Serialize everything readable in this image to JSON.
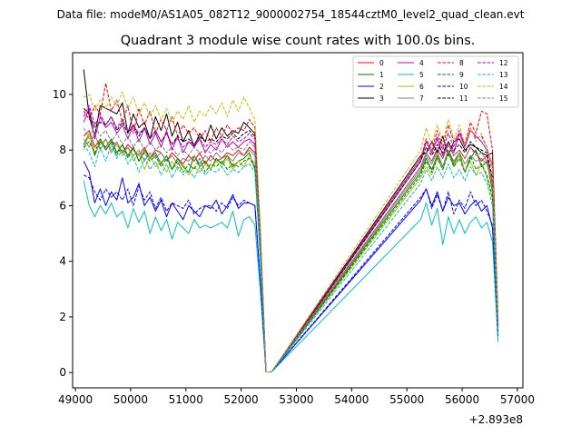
{
  "suptitle": "Data file: modeM0/AS1A05_082T12_9000002754_18544cztM0_level2_quad_clean.evt",
  "chart_data": {
    "type": "line",
    "title": "Quadrant 3 module wise count rates with 100.0s bins.",
    "xlabel": "",
    "ylabel": "",
    "x_offset_label": "+2.893e8",
    "xlim": [
      48950,
      57100
    ],
    "ylim": [
      -0.55,
      11.5
    ],
    "xticks": [
      49000,
      50000,
      51000,
      52000,
      53000,
      54000,
      55000,
      56000,
      57000
    ],
    "xtick_labels": [
      "49000",
      "50000",
      "51000",
      "52000",
      "53000",
      "54000",
      "55000",
      "56000",
      "57000"
    ],
    "yticks": [
      0,
      2,
      4,
      6,
      8,
      10
    ],
    "ytick_labels": [
      "0",
      "2",
      "4",
      "6",
      "8",
      "10"
    ],
    "grid": false,
    "legend_position": "top-right",
    "legend_columns": 4,
    "x": [
      49150,
      49250,
      49350,
      49450,
      49550,
      49650,
      49750,
      49850,
      49950,
      50050,
      50150,
      50250,
      50350,
      50450,
      50550,
      50650,
      50750,
      50850,
      50950,
      51050,
      51150,
      51250,
      51350,
      51450,
      51550,
      51650,
      51750,
      51850,
      51950,
      52050,
      52150,
      52250,
      52350,
      52450,
      52550,
      55250,
      55350,
      55450,
      55550,
      55650,
      55750,
      55850,
      55950,
      56050,
      56150,
      56250,
      56350,
      56450,
      56550,
      56650
    ],
    "series": [
      {
        "name": "0",
        "color": "#ff0000",
        "dash": "solid",
        "values": [
          8.5,
          8.7,
          8.1,
          8.4,
          8.0,
          8.3,
          8.2,
          7.9,
          8.2,
          8.0,
          7.8,
          8.1,
          7.7,
          8.0,
          7.9,
          7.6,
          7.9,
          7.7,
          7.5,
          7.8,
          7.6,
          7.9,
          7.5,
          7.8,
          7.6,
          7.7,
          7.9,
          7.8,
          8.0,
          7.8,
          8.1,
          7.9,
          4.5,
          0.02,
          0.02,
          7.4,
          7.9,
          7.6,
          8.0,
          7.7,
          8.2,
          7.8,
          8.0,
          7.7,
          8.1,
          7.9,
          7.6,
          7.8,
          6.8,
          1.6
        ]
      },
      {
        "name": "1",
        "color": "#008000",
        "dash": "solid",
        "values": [
          8.2,
          8.6,
          7.8,
          8.3,
          8.1,
          8.4,
          7.9,
          8.2,
          7.8,
          8.1,
          7.6,
          8.0,
          7.7,
          7.9,
          7.5,
          7.8,
          7.3,
          7.7,
          7.4,
          7.2,
          7.8,
          7.4,
          7.6,
          7.3,
          7.7,
          7.5,
          7.8,
          7.4,
          7.6,
          7.7,
          7.9,
          7.3,
          4.3,
          0.02,
          0.02,
          7.2,
          7.7,
          7.3,
          7.8,
          7.4,
          8.0,
          7.5,
          7.9,
          7.2,
          7.7,
          8.0,
          7.4,
          7.6,
          6.5,
          1.5
        ]
      },
      {
        "name": "2",
        "color": "#0000ff",
        "dash": "solid",
        "values": [
          7.6,
          7.2,
          6.1,
          6.6,
          6.0,
          6.5,
          6.2,
          7.0,
          6.1,
          6.3,
          6.8,
          6.0,
          6.3,
          5.8,
          6.2,
          5.6,
          6.1,
          5.8,
          5.5,
          6.0,
          5.8,
          5.6,
          6.0,
          5.9,
          6.2,
          5.7,
          6.0,
          6.4,
          5.9,
          6.1,
          6.1,
          6.0,
          3.2,
          0.02,
          0.02,
          6.2,
          6.6,
          6.0,
          6.5,
          5.8,
          6.3,
          6.0,
          6.1,
          5.7,
          6.0,
          6.2,
          5.8,
          6.0,
          5.2,
          1.3
        ]
      },
      {
        "name": "3",
        "color": "#000000",
        "dash": "solid",
        "values": [
          10.9,
          9.2,
          8.5,
          9.6,
          9.5,
          9.4,
          9.3,
          9.7,
          8.6,
          9.3,
          8.8,
          9.0,
          8.4,
          9.2,
          8.7,
          9.3,
          8.5,
          9.0,
          8.3,
          8.7,
          8.1,
          8.6,
          8.3,
          8.9,
          8.4,
          8.8,
          8.5,
          8.7,
          8.6,
          9.0,
          8.8,
          8.6,
          4.9,
          0.02,
          0.02,
          7.8,
          7.9,
          8.3,
          7.9,
          8.5,
          7.8,
          8.3,
          8.4,
          8.0,
          8.2,
          8.1,
          7.9,
          7.8,
          7.9,
          1.8
        ]
      },
      {
        "name": "4",
        "color": "#c000c0",
        "dash": "solid",
        "values": [
          9.0,
          9.5,
          8.4,
          9.2,
          8.8,
          9.0,
          8.6,
          8.9,
          8.4,
          8.9,
          8.3,
          8.8,
          8.2,
          8.6,
          8.1,
          8.7,
          8.0,
          8.5,
          7.9,
          8.3,
          8.1,
          8.4,
          7.9,
          8.2,
          8.0,
          8.4,
          8.1,
          8.3,
          8.1,
          8.3,
          8.4,
          8.2,
          4.6,
          0.02,
          0.02,
          7.6,
          8.3,
          7.9,
          8.4,
          7.8,
          8.3,
          7.9,
          8.6,
          8.1,
          8.7,
          8.5,
          8.3,
          8.0,
          7.5,
          1.7
        ]
      },
      {
        "name": "5",
        "color": "#00bfbf",
        "dash": "solid",
        "values": [
          6.9,
          6.0,
          5.6,
          6.0,
          5.7,
          6.1,
          5.6,
          5.8,
          5.2,
          5.9,
          5.4,
          5.8,
          5.0,
          5.6,
          5.1,
          5.5,
          4.8,
          5.4,
          5.2,
          5.0,
          5.5,
          5.2,
          5.3,
          5.2,
          5.3,
          5.4,
          5.2,
          5.8,
          4.9,
          5.5,
          5.6,
          5.3,
          2.9,
          0.02,
          0.02,
          5.5,
          6.1,
          5.3,
          5.9,
          4.6,
          5.6,
          5.0,
          5.5,
          5.0,
          5.4,
          5.6,
          5.2,
          5.4,
          4.7,
          1.1
        ]
      },
      {
        "name": "6",
        "color": "#bfbf00",
        "dash": "solid",
        "values": [
          8.0,
          8.6,
          7.9,
          8.2,
          8.4,
          8.0,
          8.2,
          7.8,
          8.1,
          7.6,
          7.9,
          7.3,
          7.8,
          7.4,
          7.6,
          7.2,
          7.6,
          7.3,
          7.5,
          7.1,
          7.4,
          7.2,
          7.5,
          7.3,
          7.6,
          7.4,
          7.7,
          7.3,
          7.6,
          7.4,
          7.8,
          7.5,
          4.4,
          0.02,
          0.02,
          7.0,
          7.4,
          7.1,
          7.7,
          7.3,
          7.9,
          7.4,
          7.8,
          7.2,
          7.6,
          7.1,
          7.5,
          7.0,
          6.2,
          1.4
        ]
      },
      {
        "name": "7",
        "color": "#808080",
        "dash": "solid",
        "values": [
          8.4,
          8.1,
          8.6,
          8.0,
          8.4,
          7.9,
          8.3,
          7.9,
          8.1,
          7.8,
          8.0,
          7.6,
          7.9,
          7.7,
          7.9,
          7.6,
          7.8,
          7.5,
          7.7,
          7.6,
          7.8,
          7.5,
          7.8,
          7.6,
          7.9,
          7.7,
          7.8,
          7.6,
          7.9,
          7.8,
          8.0,
          7.8,
          4.5,
          0.02,
          0.02,
          7.3,
          7.8,
          7.5,
          7.9,
          7.4,
          8.0,
          7.6,
          7.9,
          7.5,
          7.8,
          7.6,
          7.7,
          7.5,
          6.7,
          1.6
        ]
      },
      {
        "name": "8",
        "color": "#ff0000",
        "dash": "dashed",
        "values": [
          9.4,
          9.1,
          9.6,
          9.3,
          10.4,
          9.4,
          9.8,
          9.0,
          9.6,
          8.6,
          9.5,
          8.9,
          9.4,
          8.6,
          9.1,
          8.7,
          9.2,
          8.5,
          8.9,
          8.6,
          8.8,
          8.4,
          8.7,
          8.3,
          8.8,
          8.5,
          8.9,
          8.6,
          8.8,
          8.7,
          9.1,
          8.8,
          5.0,
          0.02,
          0.02,
          7.7,
          8.4,
          8.0,
          8.7,
          8.1,
          8.9,
          8.3,
          8.6,
          8.2,
          9.0,
          8.6,
          9.4,
          9.3,
          8.0,
          2.1
        ]
      },
      {
        "name": "9",
        "color": "#008000",
        "dash": "dashed",
        "values": [
          8.1,
          8.3,
          7.9,
          8.4,
          8.0,
          8.3,
          7.8,
          8.2,
          7.7,
          8.1,
          7.6,
          7.9,
          7.6,
          7.8,
          7.4,
          7.7,
          7.3,
          7.6,
          7.2,
          7.5,
          7.3,
          7.7,
          7.2,
          7.5,
          7.4,
          7.6,
          7.3,
          7.5,
          7.4,
          7.6,
          7.7,
          7.4,
          4.2,
          0.02,
          0.02,
          7.1,
          7.6,
          7.2,
          7.7,
          7.3,
          7.9,
          7.4,
          7.7,
          7.2,
          7.8,
          7.3,
          7.5,
          7.1,
          6.3,
          1.4
        ]
      },
      {
        "name": "10",
        "color": "#0000ff",
        "dash": "dashed",
        "values": [
          7.1,
          7.0,
          6.5,
          6.2,
          6.6,
          6.3,
          6.5,
          6.2,
          6.6,
          6.0,
          6.7,
          6.2,
          6.5,
          5.9,
          6.3,
          5.8,
          6.1,
          6.0,
          5.9,
          6.2,
          5.7,
          5.9,
          6.0,
          6.0,
          5.8,
          6.1,
          5.9,
          6.3,
          6.0,
          6.2,
          6.1,
          6.0,
          3.3,
          0.02,
          0.02,
          6.3,
          6.6,
          5.9,
          6.4,
          5.8,
          6.5,
          5.7,
          6.2,
          5.9,
          6.5,
          6.0,
          6.2,
          5.8,
          5.3,
          1.3
        ]
      },
      {
        "name": "11",
        "color": "#000000",
        "dash": "dashed",
        "values": [
          9.5,
          9.3,
          8.8,
          9.0,
          8.9,
          9.2,
          8.7,
          9.0,
          8.6,
          8.9,
          8.5,
          8.8,
          8.4,
          8.7,
          8.3,
          8.6,
          8.2,
          8.5,
          8.3,
          8.4,
          8.2,
          8.5,
          8.3,
          8.4,
          8.3,
          8.5,
          8.4,
          8.6,
          8.4,
          8.6,
          8.7,
          8.5,
          4.8,
          0.02,
          0.02,
          7.6,
          8.1,
          7.8,
          8.2,
          7.9,
          8.3,
          8.0,
          8.2,
          7.9,
          8.3,
          8.1,
          8.0,
          7.9,
          7.0,
          1.7
        ]
      },
      {
        "name": "12",
        "color": "#c000c0",
        "dash": "dashed",
        "values": [
          9.2,
          9.6,
          8.9,
          9.3,
          8.9,
          9.2,
          8.8,
          9.1,
          8.7,
          8.9,
          8.6,
          8.8,
          8.4,
          8.7,
          8.3,
          8.6,
          8.2,
          8.4,
          8.1,
          8.3,
          8.2,
          8.4,
          8.1,
          8.3,
          8.2,
          8.4,
          8.2,
          8.5,
          8.3,
          8.4,
          8.6,
          8.4,
          4.7,
          0.02,
          0.02,
          7.7,
          8.3,
          7.9,
          8.5,
          8.0,
          8.6,
          8.1,
          8.7,
          8.2,
          8.8,
          8.4,
          8.5,
          8.1,
          7.3,
          1.8
        ]
      },
      {
        "name": "13",
        "color": "#00bfbf",
        "dash": "dashed",
        "values": [
          8.2,
          7.9,
          7.4,
          8.1,
          7.6,
          8.2,
          7.7,
          8.0,
          7.5,
          7.8,
          7.2,
          7.7,
          7.3,
          7.6,
          7.1,
          7.5,
          7.0,
          7.4,
          7.1,
          7.3,
          7.0,
          7.4,
          7.1,
          7.3,
          7.2,
          7.4,
          7.1,
          7.3,
          7.2,
          7.4,
          7.5,
          7.2,
          4.0,
          0.02,
          0.02,
          6.8,
          7.3,
          6.9,
          7.4,
          7.0,
          7.5,
          7.0,
          7.3,
          6.9,
          7.4,
          7.1,
          7.2,
          6.8,
          6.0,
          1.3
        ]
      },
      {
        "name": "14",
        "color": "#bfbf00",
        "dash": "dashed",
        "values": [
          9.9,
          10.0,
          9.4,
          9.8,
          9.5,
          9.9,
          9.6,
          10.1,
          9.5,
          9.9,
          9.3,
          9.7,
          9.2,
          9.6,
          9.1,
          9.5,
          9.0,
          9.4,
          9.1,
          9.6,
          9.0,
          9.4,
          9.2,
          9.6,
          9.3,
          9.7,
          9.2,
          9.8,
          9.4,
          9.9,
          9.5,
          9.1,
          5.2,
          0.02,
          0.02,
          8.0,
          8.8,
          8.2,
          8.9,
          8.3,
          9.1,
          8.4,
          8.9,
          8.2,
          8.8,
          8.3,
          8.6,
          8.1,
          7.4,
          2.0
        ]
      },
      {
        "name": "15",
        "color": "#808080",
        "dash": "dashed",
        "values": [
          8.8,
          8.4,
          8.9,
          8.5,
          8.7,
          8.3,
          8.6,
          8.2,
          8.5,
          8.1,
          8.4,
          8.0,
          8.3,
          8.0,
          8.2,
          7.9,
          8.1,
          7.8,
          8.0,
          7.8,
          8.1,
          7.9,
          8.0,
          7.9,
          8.1,
          7.9,
          8.2,
          8.0,
          8.1,
          8.0,
          8.3,
          8.1,
          4.6,
          0.02,
          0.02,
          7.4,
          7.9,
          7.6,
          8.1,
          7.7,
          8.2,
          7.8,
          8.0,
          7.7,
          8.1,
          7.8,
          7.9,
          7.6,
          6.9,
          1.6
        ]
      }
    ]
  }
}
